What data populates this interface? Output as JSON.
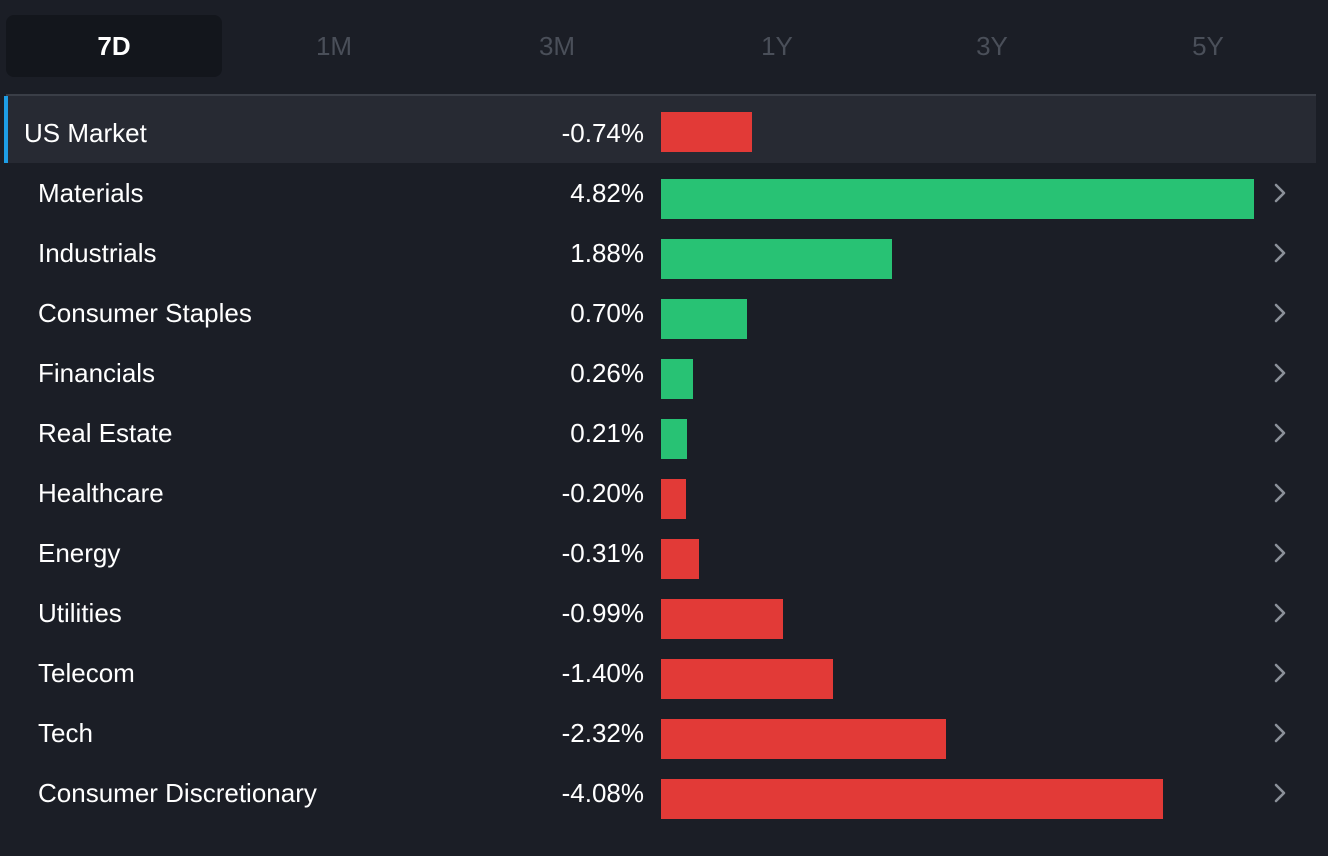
{
  "colors": {
    "positive": "#28c274",
    "negative": "#e23a37",
    "accent": "#1e9ee6"
  },
  "tabs": [
    {
      "label": "7D",
      "active": true
    },
    {
      "label": "1M",
      "active": false
    },
    {
      "label": "3M",
      "active": false
    },
    {
      "label": "1Y",
      "active": false
    },
    {
      "label": "3Y",
      "active": false
    },
    {
      "label": "5Y",
      "active": false
    }
  ],
  "market": {
    "label": "US Market",
    "value_text": "-0.74%",
    "value": -0.74
  },
  "sectors": [
    {
      "label": "Materials",
      "value_text": "4.82%",
      "value": 4.82
    },
    {
      "label": "Industrials",
      "value_text": "1.88%",
      "value": 1.88
    },
    {
      "label": "Consumer Staples",
      "value_text": "0.70%",
      "value": 0.7
    },
    {
      "label": "Financials",
      "value_text": "0.26%",
      "value": 0.26
    },
    {
      "label": "Real Estate",
      "value_text": "0.21%",
      "value": 0.21
    },
    {
      "label": "Healthcare",
      "value_text": "-0.20%",
      "value": -0.2
    },
    {
      "label": "Energy",
      "value_text": "-0.31%",
      "value": -0.31
    },
    {
      "label": "Utilities",
      "value_text": "-0.99%",
      "value": -0.99
    },
    {
      "label": "Telecom",
      "value_text": "-1.40%",
      "value": -1.4
    },
    {
      "label": "Tech",
      "value_text": "-2.32%",
      "value": -2.32
    },
    {
      "label": "Consumer Discretionary",
      "value_text": "-4.08%",
      "value": -4.08
    }
  ]
}
